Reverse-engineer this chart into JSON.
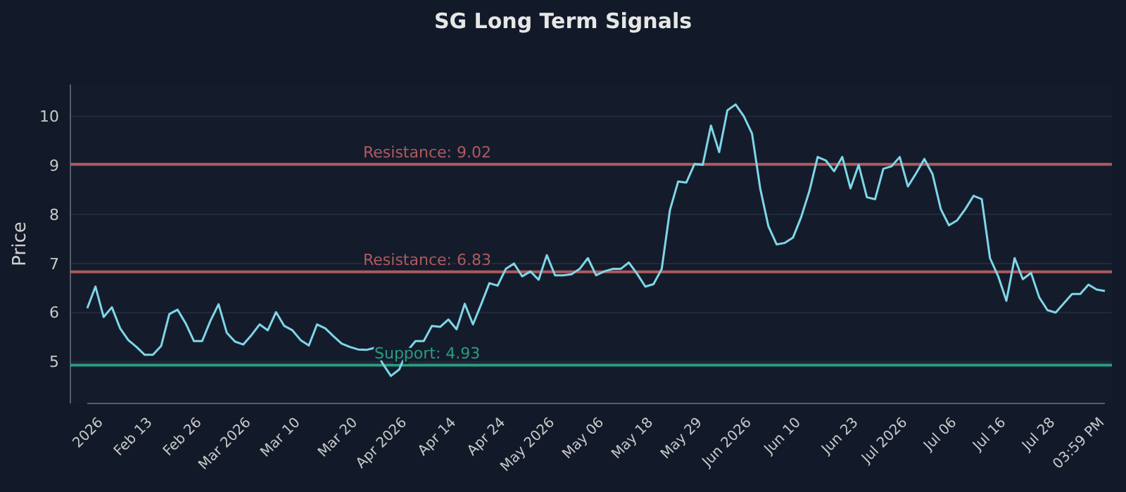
{
  "chart_data": {
    "type": "line",
    "title": "SG Long Term Signals",
    "ylabel": "Price",
    "categories": [
      null,
      null,
      "2026",
      null,
      null,
      null,
      null,
      null,
      "Feb 13",
      null,
      null,
      null,
      null,
      null,
      "Feb 26",
      null,
      null,
      null,
      null,
      null,
      "Mar 2026",
      null,
      null,
      null,
      null,
      null,
      "Mar 10",
      null,
      null,
      null,
      null,
      null,
      null,
      "Mar 20",
      null,
      null,
      null,
      null,
      null,
      "Apr 2026",
      null,
      null,
      null,
      null,
      null,
      "Apr 14",
      null,
      null,
      null,
      null,
      null,
      "Apr 24",
      null,
      null,
      null,
      null,
      null,
      "May 2026",
      null,
      null,
      null,
      null,
      null,
      "May 06",
      null,
      null,
      null,
      null,
      null,
      "May 18",
      null,
      null,
      null,
      null,
      null,
      "May 29",
      null,
      null,
      null,
      null,
      null,
      "Jun 2026",
      null,
      null,
      null,
      null,
      null,
      "Jun 10",
      null,
      null,
      null,
      null,
      null,
      null,
      "Jun 23",
      null,
      null,
      null,
      null,
      null,
      "Jul 2026",
      null,
      null,
      null,
      null,
      null,
      "Jul 06",
      null,
      null,
      null,
      null,
      null,
      "Jul 16",
      null,
      null,
      null,
      null,
      null,
      "Jul 28",
      null,
      null,
      null,
      null,
      null,
      "03:59 PM"
    ],
    "series": [
      {
        "color": "#7fd6e6",
        "values": [
          6.09,
          6.53,
          5.91,
          6.11,
          5.68,
          5.44,
          5.3,
          5.14,
          5.14,
          5.32,
          5.97,
          6.06,
          5.78,
          5.42,
          5.42,
          5.83,
          6.17,
          5.59,
          5.41,
          5.35,
          5.54,
          5.76,
          5.64,
          6.01,
          5.73,
          5.64,
          5.44,
          5.33,
          5.76,
          5.68,
          5.52,
          5.37,
          5.3,
          5.25,
          5.24,
          5.28,
          4.96,
          4.71,
          4.84,
          5.22,
          5.42,
          5.42,
          5.73,
          5.71,
          5.86,
          5.66,
          6.18,
          5.76,
          6.17,
          6.6,
          6.55,
          6.89,
          7.0,
          6.74,
          6.84,
          6.67,
          7.17,
          6.76,
          6.76,
          6.78,
          6.89,
          7.11,
          6.76,
          6.84,
          6.89,
          6.89,
          7.02,
          6.79,
          6.53,
          6.58,
          6.89,
          8.09,
          8.67,
          8.65,
          9.03,
          9.01,
          9.81,
          9.27,
          10.12,
          10.24,
          10.0,
          9.65,
          8.53,
          7.76,
          7.39,
          7.42,
          7.53,
          7.95,
          8.48,
          9.17,
          9.1,
          8.88,
          9.17,
          8.53,
          9.01,
          8.35,
          8.31,
          8.93,
          8.98,
          9.17,
          8.57,
          8.84,
          9.13,
          8.82,
          8.11,
          7.78,
          7.88,
          8.11,
          8.38,
          8.31,
          7.11,
          6.74,
          6.24,
          7.11,
          6.68,
          6.81,
          6.31,
          6.05,
          6.0,
          6.19,
          6.38,
          6.38,
          6.57,
          6.47,
          6.44
        ]
      }
    ],
    "ylim": [
      4.15,
      10.65
    ],
    "yticks": [
      5,
      6,
      7,
      8,
      9,
      10
    ],
    "grid": "y",
    "ref_lines": [
      {
        "axis": "y",
        "value": 9.02,
        "label": "Resistance: 9.02",
        "color": "#b05a5e"
      },
      {
        "axis": "y",
        "value": 6.83,
        "label": "Resistance: 6.83",
        "color": "#b05a5e"
      },
      {
        "axis": "y",
        "value": 4.93,
        "label": "Support: 4.93",
        "color": "#2a9d80"
      }
    ]
  }
}
